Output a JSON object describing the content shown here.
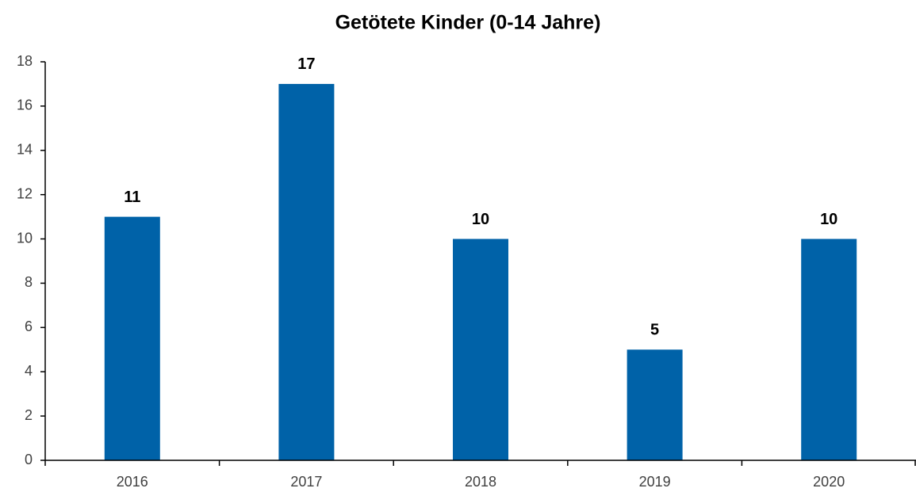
{
  "chart_data": {
    "type": "bar",
    "title": "Getötete Kinder (0-14 Jahre)",
    "categories": [
      "2016",
      "2017",
      "2018",
      "2019",
      "2020"
    ],
    "values": [
      11,
      17,
      10,
      5,
      10
    ],
    "color": "#0062a8",
    "ylim": [
      0,
      18
    ],
    "yticks": [
      0,
      2,
      4,
      6,
      8,
      10,
      12,
      14,
      16,
      18
    ],
    "grid": false
  }
}
